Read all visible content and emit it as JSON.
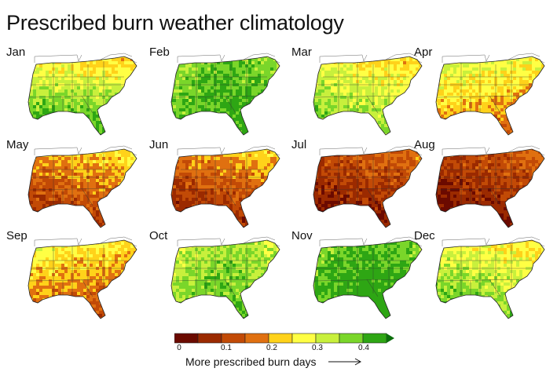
{
  "title": "Prescribed burn weather climatology",
  "months": [
    {
      "label": "Jan",
      "base": 0.3,
      "hot": "south-green"
    },
    {
      "label": "Feb",
      "base": 0.33,
      "hot": "green"
    },
    {
      "label": "Mar",
      "base": 0.28,
      "hot": "mixed"
    },
    {
      "label": "Apr",
      "base": 0.2,
      "hot": "mixed-orange"
    },
    {
      "label": "May",
      "base": 0.14,
      "hot": "orange"
    },
    {
      "label": "Jun",
      "base": 0.12,
      "hot": "orange"
    },
    {
      "label": "Jul",
      "base": 0.09,
      "hot": "dark"
    },
    {
      "label": "Aug",
      "base": 0.08,
      "hot": "dark"
    },
    {
      "label": "Sep",
      "base": 0.17,
      "hot": "mixed-orange"
    },
    {
      "label": "Oct",
      "base": 0.3,
      "hot": "green"
    },
    {
      "label": "Nov",
      "base": 0.35,
      "hot": "green"
    },
    {
      "label": "Dec",
      "base": 0.29,
      "hot": "mixed"
    }
  ],
  "colorbar": {
    "colors": [
      "#6b0a00",
      "#9b2a00",
      "#c24a06",
      "#e07010",
      "#ffd21a",
      "#ffff44",
      "#c8f03c",
      "#7ad62a",
      "#2ea614"
    ],
    "arrow_color": "#0b6e0b",
    "ticks": [
      "0",
      "0.1",
      "0.2",
      "0.3",
      "0.4"
    ],
    "caption": "More prescribed burn days"
  }
}
